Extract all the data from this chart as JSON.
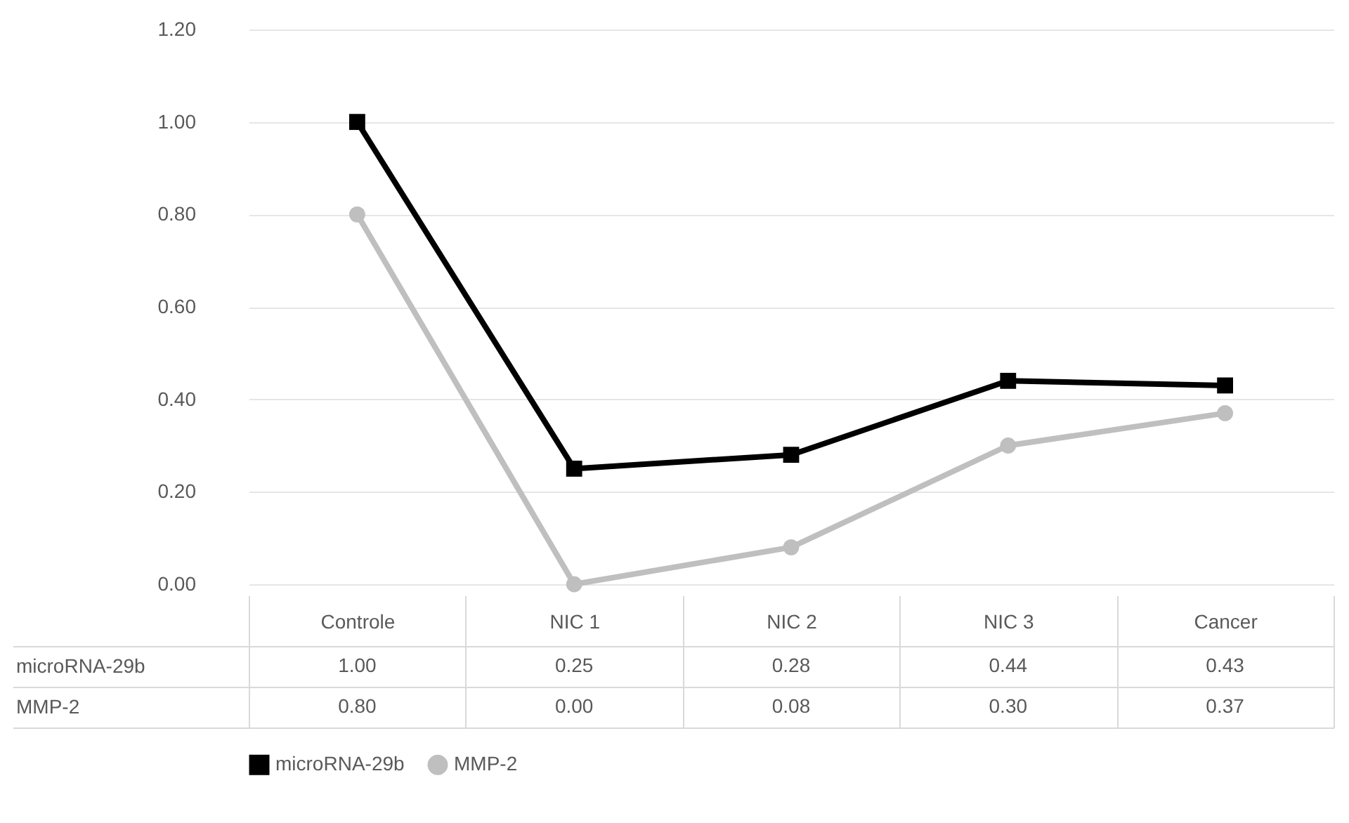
{
  "chart_data": {
    "type": "line",
    "categories": [
      "Controle",
      "NIC 1",
      "NIC 2",
      "NIC 3",
      "Cancer"
    ],
    "series": [
      {
        "name": "microRNA-29b",
        "color": "#000000",
        "marker": "square",
        "values": [
          1.0,
          0.25,
          0.28,
          0.44,
          0.43
        ],
        "value_labels": [
          "1.00",
          "0.25",
          "0.28",
          "0.44",
          "0.43"
        ]
      },
      {
        "name": "MMP-2",
        "color": "#bfbfbf",
        "marker": "circle",
        "values": [
          0.8,
          0.0,
          0.08,
          0.3,
          0.37
        ],
        "value_labels": [
          "0.80",
          "0.00",
          "0.08",
          "0.30",
          "0.37"
        ]
      }
    ],
    "ylim": [
      0,
      1.2
    ],
    "yticks": [
      {
        "value": 0,
        "label": "0.00"
      },
      {
        "value": 0.2,
        "label": "0.20"
      },
      {
        "value": 0.4,
        "label": "0.40"
      },
      {
        "value": 0.6,
        "label": "0.60"
      },
      {
        "value": 0.8,
        "label": "0.80"
      },
      {
        "value": 1.0,
        "label": "1.00"
      },
      {
        "value": 1.2,
        "label": "1.20"
      }
    ],
    "grid": "y",
    "legend": "bottom",
    "line_style": "solid"
  }
}
